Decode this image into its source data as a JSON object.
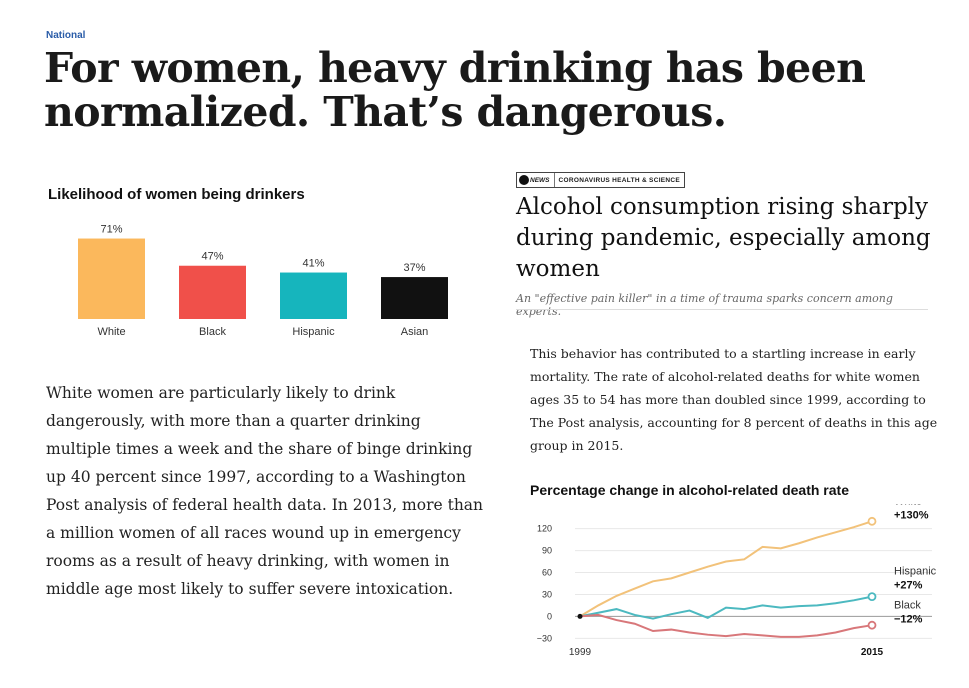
{
  "section": "National",
  "headline": "For women, heavy drinking has been normalized. That’s dangerous.",
  "chart1": {
    "title": "Likelihood of women being drinkers",
    "chart_data": {
      "type": "bar",
      "title": "Likelihood of women being drinkers",
      "categories": [
        "White",
        "Black",
        "Hispanic",
        "Asian"
      ],
      "values": [
        71,
        47,
        41,
        37
      ],
      "value_labels": [
        "71%",
        "47%",
        "41%",
        "37%"
      ],
      "colors": [
        "#fbb85c",
        "#f0504a",
        "#16b5bd",
        "#111111"
      ],
      "ylim": [
        0,
        75
      ],
      "grid": false
    }
  },
  "body1": "White women are particularly likely to drink dangerously, with more than a quarter drinking multiple times a week and the share of binge drinking up 40 percent since 1997, according to a Washington Post analysis of federal health data. In 2013, more than a million women of all races wound up in emergency rooms as a result of heavy drinking, with women in middle age most likely to suffer severe intoxication.",
  "abc": {
    "logo": "NEWS",
    "category": "CORONAVIRUS HEALTH & SCIENCE",
    "headline": "Alcohol consumption rising sharply during pandemic, especially among women",
    "subhead": "An \"effective pain killer\" in a time of trauma sparks concern among experts."
  },
  "body2": "This behavior has contributed to a startling increase in early mortality. The rate of alcohol-related deaths for white women ages 35 to 54 has more than doubled since 1999, according to The Post analysis, accounting for 8 percent of deaths in this age group in 2015.",
  "chart2": {
    "title": "Percentage change in alcohol-related death rate",
    "chart_data": {
      "type": "line",
      "title": "Percentage change in alcohol-related death rate",
      "x": [
        1999,
        2000,
        2001,
        2002,
        2003,
        2004,
        2005,
        2006,
        2007,
        2008,
        2009,
        2010,
        2011,
        2012,
        2013,
        2014,
        2015
      ],
      "xticks": [
        "1999",
        "2015"
      ],
      "yticks": [
        120,
        90,
        60,
        30,
        0,
        -30
      ],
      "ylim": [
        -35,
        140
      ],
      "series": [
        {
          "name": "White",
          "end_label": "+130%",
          "color": "#f2c27a",
          "values": [
            0,
            15,
            28,
            38,
            48,
            52,
            60,
            68,
            75,
            78,
            95,
            93,
            100,
            108,
            115,
            122,
            130
          ]
        },
        {
          "name": "Hispanic",
          "end_label": "+27%",
          "color": "#4cb9c0",
          "values": [
            0,
            5,
            10,
            2,
            -3,
            3,
            8,
            -2,
            12,
            10,
            15,
            12,
            14,
            15,
            18,
            22,
            27
          ]
        },
        {
          "name": "Black",
          "end_label": "−12%",
          "color": "#d8777a",
          "values": [
            0,
            2,
            -5,
            -10,
            -20,
            -18,
            -22,
            -25,
            -27,
            -24,
            -26,
            -28,
            -28,
            -26,
            -22,
            -16,
            -12
          ]
        }
      ]
    }
  }
}
